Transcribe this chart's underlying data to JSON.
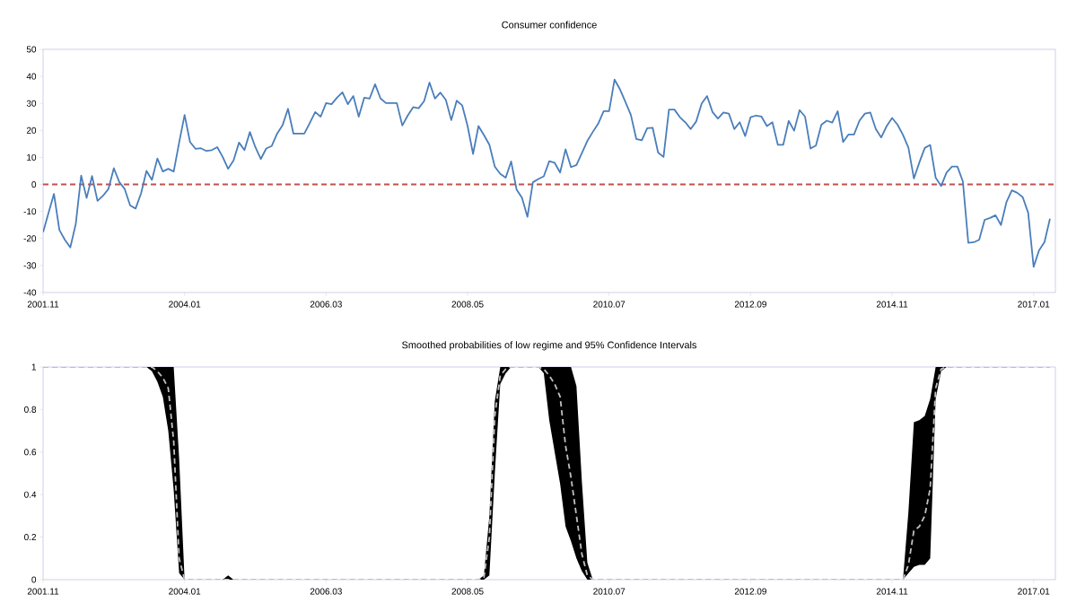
{
  "chart_data": [
    {
      "type": "line",
      "title": "Consumer confidence",
      "color": "#4a7ebb",
      "x": [
        "2001-11",
        "2001-12",
        "2002-01",
        "2002-02",
        "2002-03",
        "2002-04",
        "2002-05",
        "2002-06",
        "2002-07",
        "2002-08",
        "2002-09",
        "2002-10",
        "2002-11",
        "2002-12",
        "2003-01",
        "2003-02",
        "2003-03",
        "2003-04",
        "2003-05",
        "2003-06",
        "2003-07",
        "2003-08",
        "2003-09",
        "2003-10",
        "2003-11",
        "2003-12",
        "2004-01",
        "2004-02",
        "2004-03",
        "2004-04",
        "2004-05",
        "2004-06",
        "2004-07",
        "2004-08",
        "2004-09",
        "2004-10",
        "2004-11",
        "2004-12",
        "2005-01",
        "2005-02",
        "2005-03",
        "2005-04",
        "2005-05",
        "2005-06",
        "2005-07",
        "2005-08",
        "2005-09",
        "2005-10",
        "2005-11",
        "2005-12",
        "2006-01",
        "2006-02",
        "2006-03",
        "2006-04",
        "2006-05",
        "2006-06",
        "2006-07",
        "2006-08",
        "2006-09",
        "2006-10",
        "2006-11",
        "2006-12",
        "2007-01",
        "2007-02",
        "2007-03",
        "2007-04",
        "2007-05",
        "2007-06",
        "2007-07",
        "2007-08",
        "2007-09",
        "2007-10",
        "2007-11",
        "2007-12",
        "2008-01",
        "2008-02",
        "2008-03",
        "2008-04",
        "2008-05",
        "2008-06",
        "2008-07",
        "2008-08",
        "2008-09",
        "2008-10",
        "2008-11",
        "2008-12",
        "2009-01",
        "2009-02",
        "2009-03",
        "2009-04",
        "2009-05",
        "2009-06",
        "2009-07",
        "2009-08",
        "2009-09",
        "2009-10",
        "2009-11",
        "2009-12",
        "2010-01",
        "2010-02",
        "2010-03",
        "2010-04",
        "2010-05",
        "2010-06",
        "2010-07",
        "2010-08",
        "2010-09",
        "2010-10",
        "2010-11",
        "2010-12",
        "2011-01",
        "2011-02",
        "2011-03",
        "2011-04",
        "2011-05",
        "2011-06",
        "2011-07",
        "2011-08",
        "2011-09",
        "2011-10",
        "2011-11",
        "2011-12",
        "2012-01",
        "2012-02",
        "2012-03",
        "2012-04",
        "2012-05",
        "2012-06",
        "2012-07",
        "2012-08",
        "2012-09",
        "2012-10",
        "2012-11",
        "2012-12",
        "2013-01",
        "2013-02",
        "2013-03",
        "2013-04",
        "2013-05",
        "2013-06",
        "2013-07",
        "2013-08",
        "2013-09",
        "2013-10",
        "2013-11",
        "2013-12",
        "2014-01",
        "2014-02",
        "2014-03",
        "2014-04",
        "2014-05",
        "2014-06",
        "2014-07",
        "2014-08",
        "2014-09",
        "2014-10",
        "2014-11",
        "2014-12",
        "2015-01",
        "2015-02",
        "2015-03",
        "2015-04",
        "2015-05",
        "2015-06",
        "2015-07",
        "2015-08",
        "2015-09",
        "2015-10",
        "2015-11",
        "2015-12",
        "2016-01",
        "2016-02",
        "2016-03",
        "2016-04",
        "2016-05",
        "2016-06",
        "2016-07",
        "2016-08",
        "2016-09",
        "2016-10",
        "2016-11",
        "2016-12",
        "2017-01",
        "2017-02",
        "2017-03",
        "2017-04"
      ],
      "values": [
        -17.7,
        -10.5,
        -3.5,
        -16.9,
        -20.5,
        -23.3,
        -14.7,
        3.3,
        -5,
        3.1,
        -6.1,
        -4.2,
        -1.7,
        6,
        0.9,
        -1.7,
        -7.8,
        -8.9,
        -3.3,
        5,
        1.7,
        9.6,
        4.8,
        5.8,
        4.8,
        15.5,
        25.7,
        15.7,
        13.2,
        13.4,
        12.4,
        12.7,
        13.8,
        10.2,
        5.8,
        8.9,
        15.5,
        12.7,
        19.4,
        13.8,
        9.4,
        13.3,
        14.2,
        18.8,
        21.9,
        28,
        18.8,
        18.8,
        18.8,
        22.7,
        26.8,
        25.1,
        30.1,
        29.7,
        32.1,
        34.1,
        29.7,
        32.7,
        25.1,
        32.1,
        31.8,
        37.1,
        31.8,
        30.1,
        30.1,
        30.1,
        21.8,
        25.5,
        28.6,
        28.2,
        30.8,
        37.7,
        31.8,
        34,
        31.3,
        23.8,
        31,
        29.3,
        21.6,
        11.3,
        21.6,
        18.3,
        14.7,
        6.6,
        3.9,
        2.5,
        8.5,
        -1.9,
        -5,
        -12,
        0.8,
        2,
        3,
        8.6,
        8,
        4.4,
        13,
        6.4,
        7.2,
        11.6,
        16.1,
        19.4,
        22.5,
        27.1,
        27.1,
        38.8,
        35.2,
        30.5,
        25.7,
        16.8,
        16.3,
        20.8,
        21,
        11.8,
        10.2,
        27.7,
        27.7,
        24.9,
        23,
        20.5,
        23.3,
        29.9,
        32.7,
        26.8,
        24.4,
        26.6,
        26.2,
        20.5,
        23,
        17.9,
        24.9,
        25.5,
        25.1,
        21.6,
        23,
        14.7,
        14.7,
        23.5,
        19.9,
        27.5,
        25.1,
        13.3,
        14.4,
        22.1,
        23.6,
        22.9,
        27.1,
        15.7,
        18.5,
        18.5,
        23.6,
        26.2,
        26.6,
        20.5,
        17.4,
        21.6,
        24.6,
        22.1,
        18.3,
        13.6,
        2.2,
        8.1,
        13.5,
        14.6,
        2.5,
        -0.6,
        4.4,
        6.6,
        6.6,
        1.1,
        -21.6,
        -21.4,
        -20.5,
        -13.1,
        -12.4,
        -11.4,
        -15,
        -6.6,
        -2.2,
        -3.1,
        -4.7,
        -10.5,
        -30.5,
        -24.4,
        -21.3,
        -12.7
      ],
      "xlim": [
        "2001-11",
        "2017-05"
      ],
      "xticks": [
        {
          "value": "2001-11",
          "label": "2001.11"
        },
        {
          "value": "2004-01",
          "label": "2004.01"
        },
        {
          "value": "2006-03",
          "label": "2006.03"
        },
        {
          "value": "2008-05",
          "label": "2008.05"
        },
        {
          "value": "2010-07",
          "label": "2010.07"
        },
        {
          "value": "2012-09",
          "label": "2012.09"
        },
        {
          "value": "2014-11",
          "label": "2014.11"
        },
        {
          "value": "2017-01",
          "label": "2017.01"
        }
      ],
      "ylim": [
        -40,
        50
      ],
      "yticks": [
        -40,
        -30,
        -20,
        -10,
        0,
        10,
        20,
        30,
        40,
        50
      ],
      "ref_lines": [
        {
          "axis": "y",
          "value": 0,
          "color": "#c0504d",
          "line_style": "dashed"
        }
      ]
    },
    {
      "type": "line",
      "title": "Smoothed probabilities  of low regime and 95% Confidence Intervals",
      "line_style": "dashed",
      "x": [
        "2001-11",
        "2001-12",
        "2002-01",
        "2002-02",
        "2002-03",
        "2002-04",
        "2002-05",
        "2002-06",
        "2002-07",
        "2002-08",
        "2002-09",
        "2002-10",
        "2002-11",
        "2002-12",
        "2003-01",
        "2003-02",
        "2003-03",
        "2003-04",
        "2003-05",
        "2003-06",
        "2003-07",
        "2003-08",
        "2003-09",
        "2003-10",
        "2003-11",
        "2003-12",
        "2004-01",
        "2004-02",
        "2004-03",
        "2004-04",
        "2004-05",
        "2004-06",
        "2004-07",
        "2004-08",
        "2004-09",
        "2004-10",
        "2004-11",
        "2004-12",
        "2005-01",
        "2005-02",
        "2005-03",
        "2005-04",
        "2005-05",
        "2005-06",
        "2005-07",
        "2005-08",
        "2005-09",
        "2005-10",
        "2005-11",
        "2005-12",
        "2006-01",
        "2006-02",
        "2006-03",
        "2006-04",
        "2006-05",
        "2006-06",
        "2006-07",
        "2006-08",
        "2006-09",
        "2006-10",
        "2006-11",
        "2006-12",
        "2007-01",
        "2007-02",
        "2007-03",
        "2007-04",
        "2007-05",
        "2007-06",
        "2007-07",
        "2007-08",
        "2007-09",
        "2007-10",
        "2007-11",
        "2007-12",
        "2008-01",
        "2008-02",
        "2008-03",
        "2008-04",
        "2008-05",
        "2008-06",
        "2008-07",
        "2008-08",
        "2008-09",
        "2008-10",
        "2008-11",
        "2008-12",
        "2009-01",
        "2009-02",
        "2009-03",
        "2009-04",
        "2009-05",
        "2009-06",
        "2009-07",
        "2009-08",
        "2009-09",
        "2009-10",
        "2009-11",
        "2009-12",
        "2010-01",
        "2010-02",
        "2010-03",
        "2010-04",
        "2010-05",
        "2010-06",
        "2010-07",
        "2010-08",
        "2010-09",
        "2010-10",
        "2010-11",
        "2010-12",
        "2011-01",
        "2011-02",
        "2011-03",
        "2011-04",
        "2011-05",
        "2011-06",
        "2011-07",
        "2011-08",
        "2011-09",
        "2011-10",
        "2011-11",
        "2011-12",
        "2012-01",
        "2012-02",
        "2012-03",
        "2012-04",
        "2012-05",
        "2012-06",
        "2012-07",
        "2012-08",
        "2012-09",
        "2012-10",
        "2012-11",
        "2012-12",
        "2013-01",
        "2013-02",
        "2013-03",
        "2013-04",
        "2013-05",
        "2013-06",
        "2013-07",
        "2013-08",
        "2013-09",
        "2013-10",
        "2013-11",
        "2013-12",
        "2014-01",
        "2014-02",
        "2014-03",
        "2014-04",
        "2014-05",
        "2014-06",
        "2014-07",
        "2014-08",
        "2014-09",
        "2014-10",
        "2014-11",
        "2014-12",
        "2015-01",
        "2015-02",
        "2015-03",
        "2015-04",
        "2015-05",
        "2015-06",
        "2015-07",
        "2015-08",
        "2015-09",
        "2015-10",
        "2015-11",
        "2015-12",
        "2016-01",
        "2016-02",
        "2016-03",
        "2016-04",
        "2016-05",
        "2016-06",
        "2016-07",
        "2016-08",
        "2016-09",
        "2016-10",
        "2016-11",
        "2016-12",
        "2017-01",
        "2017-02",
        "2017-03",
        "2017-04"
      ],
      "series": [
        {
          "color": "#bfbfbf",
          "values": [
            1,
            1,
            1,
            1,
            1,
            1,
            1,
            1,
            1,
            1,
            1,
            1,
            1,
            1,
            1,
            1,
            1,
            1,
            1,
            1,
            1,
            0.98,
            0.95,
            0.9,
            0.65,
            0.1,
            0,
            0,
            0,
            0,
            0,
            0,
            0,
            0,
            0,
            0,
            0,
            0,
            0,
            0,
            0,
            0,
            0,
            0,
            0,
            0,
            0,
            0,
            0,
            0,
            0,
            0,
            0,
            0,
            0,
            0,
            0,
            0,
            0,
            0,
            0,
            0,
            0,
            0,
            0,
            0,
            0,
            0,
            0,
            0,
            0,
            0,
            0,
            0,
            0,
            0,
            0,
            0,
            0,
            0,
            0,
            0.01,
            0.2,
            0.77,
            0.96,
            0.99,
            1,
            1,
            1,
            1,
            1,
            1,
            0.99,
            0.96,
            0.92,
            0.86,
            0.63,
            0.48,
            0.3,
            0.12,
            0.02,
            0,
            0,
            0,
            0,
            0,
            0,
            0,
            0,
            0,
            0,
            0,
            0,
            0,
            0,
            0,
            0,
            0,
            0,
            0,
            0,
            0,
            0,
            0,
            0,
            0,
            0,
            0,
            0,
            0,
            0,
            0,
            0,
            0,
            0,
            0,
            0,
            0,
            0,
            0,
            0,
            0,
            0,
            0,
            0,
            0,
            0,
            0,
            0,
            0,
            0,
            0,
            0,
            0,
            0,
            0,
            0,
            0,
            0,
            0.07,
            0.23,
            0.25,
            0.3,
            0.43,
            0.9,
            0.99,
            1,
            1,
            1,
            1,
            1,
            1,
            1,
            1,
            1,
            1,
            1,
            1,
            1,
            1,
            1,
            1,
            1,
            1,
            1,
            1
          ],
          "lower": [
            1,
            1,
            1,
            1,
            1,
            1,
            1,
            1,
            1,
            1,
            1,
            1,
            1,
            1,
            1,
            1,
            1,
            1,
            1,
            1,
            0.98,
            0.93,
            0.86,
            0.7,
            0.42,
            0.03,
            0,
            0,
            0,
            0,
            0,
            0,
            0,
            0,
            0,
            0,
            0,
            0,
            0,
            0,
            0,
            0,
            0,
            0,
            0,
            0,
            0,
            0,
            0,
            0,
            0,
            0,
            0,
            0,
            0,
            0,
            0,
            0,
            0,
            0,
            0,
            0,
            0,
            0,
            0,
            0,
            0,
            0,
            0,
            0,
            0,
            0,
            0,
            0,
            0,
            0,
            0,
            0,
            0,
            0,
            0,
            0,
            0.02,
            0.5,
            0.92,
            0.97,
            1,
            1,
            1,
            1,
            1,
            1,
            0.97,
            0.75,
            0.6,
            0.45,
            0.25,
            0.18,
            0.1,
            0.04,
            0,
            0,
            0,
            0,
            0,
            0,
            0,
            0,
            0,
            0,
            0,
            0,
            0,
            0,
            0,
            0,
            0,
            0,
            0,
            0,
            0,
            0,
            0,
            0,
            0,
            0,
            0,
            0,
            0,
            0,
            0,
            0,
            0,
            0,
            0,
            0,
            0,
            0,
            0,
            0,
            0,
            0,
            0,
            0,
            0,
            0,
            0,
            0,
            0,
            0,
            0,
            0,
            0,
            0,
            0,
            0,
            0,
            0,
            0,
            0.03,
            0.06,
            0.07,
            0.07,
            0.1,
            0.85,
            0.98,
            1,
            1,
            1,
            1,
            1,
            1,
            1,
            1,
            1,
            1,
            1,
            1,
            1,
            1,
            1,
            1,
            1,
            1,
            1,
            1
          ],
          "upper": [
            1,
            1,
            1,
            1,
            1,
            1,
            1,
            1,
            1,
            1,
            1,
            1,
            1,
            1,
            1,
            1,
            1,
            1,
            1,
            1,
            1,
            1,
            1,
            1,
            1,
            0.57,
            0,
            0,
            0,
            0,
            0,
            0,
            0,
            0,
            0.02,
            0,
            0,
            0,
            0,
            0,
            0,
            0,
            0,
            0,
            0,
            0,
            0,
            0,
            0,
            0,
            0,
            0,
            0,
            0,
            0,
            0,
            0,
            0,
            0,
            0,
            0,
            0,
            0,
            0,
            0,
            0,
            0,
            0,
            0,
            0,
            0,
            0,
            0,
            0,
            0,
            0,
            0,
            0,
            0,
            0,
            0,
            0.02,
            0.3,
            0.84,
            1,
            1,
            1,
            1,
            1,
            1,
            1,
            1,
            1,
            1,
            1,
            1,
            1,
            1,
            0.91,
            0.46,
            0.08,
            0,
            0,
            0,
            0,
            0,
            0,
            0,
            0,
            0,
            0,
            0,
            0,
            0,
            0,
            0,
            0,
            0,
            0,
            0,
            0,
            0,
            0,
            0,
            0,
            0,
            0,
            0,
            0,
            0,
            0,
            0,
            0,
            0,
            0,
            0,
            0,
            0,
            0,
            0,
            0,
            0,
            0,
            0,
            0,
            0,
            0,
            0,
            0,
            0,
            0,
            0,
            0,
            0,
            0,
            0,
            0,
            0,
            0,
            0.32,
            0.74,
            0.75,
            0.77,
            0.85,
            1,
            1,
            1,
            1,
            1,
            1,
            1,
            1,
            1,
            1,
            1,
            1,
            1,
            1,
            1,
            1,
            1,
            1,
            1,
            1,
            1,
            1
          ]
        }
      ],
      "xlim": [
        "2001-11",
        "2017-05"
      ],
      "xticks": [
        {
          "value": "2001-11",
          "label": "2001.11"
        },
        {
          "value": "2004-01",
          "label": "2004.01"
        },
        {
          "value": "2006-03",
          "label": "2006.03"
        },
        {
          "value": "2008-05",
          "label": "2008.05"
        },
        {
          "value": "2010-07",
          "label": "2010.07"
        },
        {
          "value": "2012-09",
          "label": "2012.09"
        },
        {
          "value": "2014-11",
          "label": "2014.11"
        },
        {
          "value": "2017-01",
          "label": "2017.01"
        }
      ],
      "ylim": [
        0,
        1
      ],
      "yticks": [
        0,
        0.2,
        0.4,
        0.6,
        0.8,
        1
      ]
    }
  ]
}
